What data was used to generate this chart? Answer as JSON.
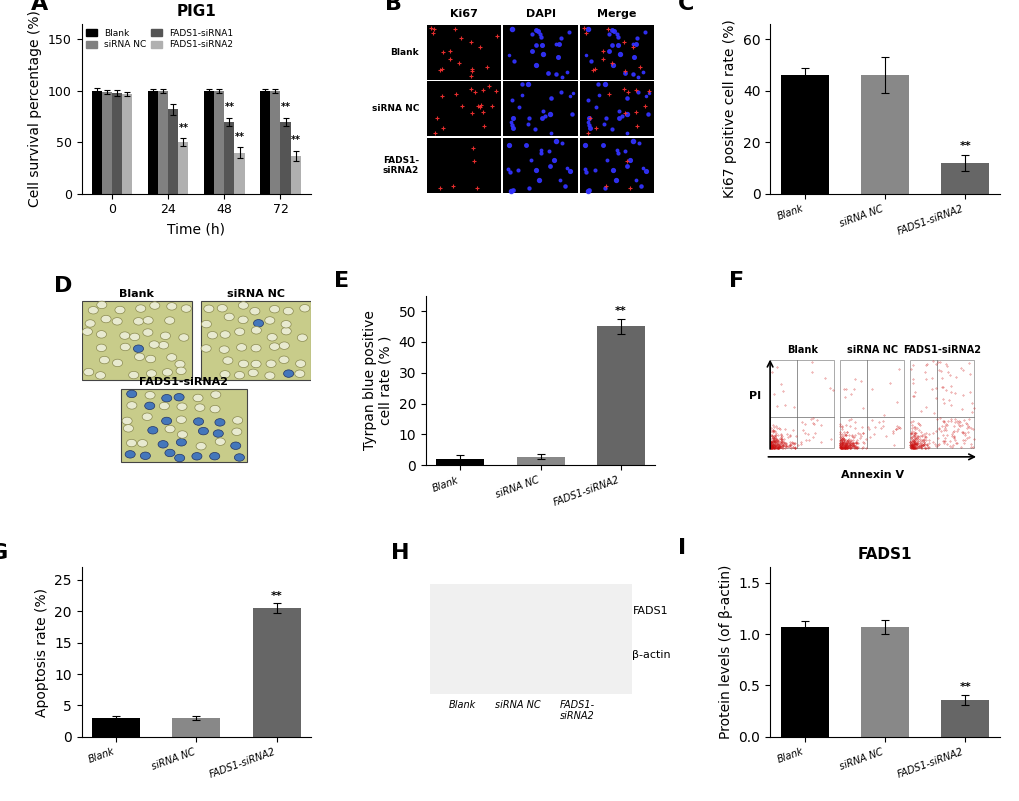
{
  "panel_A": {
    "title": "PIG1",
    "xlabel": "Time (h)",
    "ylabel": "Cell survival percentage (%)",
    "timepoints": [
      0,
      24,
      48,
      72
    ],
    "groups": [
      "Blank",
      "siRNA NC",
      "FADS1-siRNA1",
      "FADS1-siRNA2"
    ],
    "colors": [
      "#000000",
      "#808080",
      "#555555",
      "#b0b0b0"
    ],
    "values": {
      "Blank": [
        100,
        100,
        100,
        100
      ],
      "siRNA NC": [
        99,
        100,
        100,
        100
      ],
      "FADS1-siRNA1": [
        98,
        82,
        70,
        70
      ],
      "FADS1-siRNA2": [
        97,
        50,
        40,
        37
      ]
    },
    "errors": {
      "Blank": [
        3,
        2,
        2,
        2
      ],
      "siRNA NC": [
        2,
        2,
        2,
        2
      ],
      "FADS1-siRNA1": [
        3,
        5,
        4,
        4
      ],
      "FADS1-siRNA2": [
        2,
        4,
        5,
        5
      ]
    },
    "ylim": [
      0,
      165
    ],
    "yticks": [
      0,
      50,
      100,
      150
    ]
  },
  "panel_C": {
    "ylabel": "Ki67 positive cell rate (%)",
    "categories": [
      "Blank",
      "siRNA NC",
      "FADS1-siRNA2"
    ],
    "values": [
      46,
      46,
      12
    ],
    "errors": [
      3,
      7,
      3
    ],
    "colors": [
      "#000000",
      "#888888",
      "#666666"
    ],
    "significance": [
      false,
      false,
      true
    ],
    "ylim": [
      0,
      66
    ],
    "yticks": [
      0,
      20,
      40,
      60
    ]
  },
  "panel_E": {
    "ylabel": "Tyrpan blue positive\ncell rate (% )",
    "categories": [
      "Blank",
      "siRNA NC",
      "FADS1-siRNA2"
    ],
    "values": [
      2.0,
      2.8,
      45
    ],
    "errors": [
      1.2,
      0.8,
      2.5
    ],
    "colors": [
      "#000000",
      "#888888",
      "#666666"
    ],
    "significance": [
      false,
      false,
      true
    ],
    "ylim": [
      0,
      55
    ],
    "yticks": [
      0,
      10,
      20,
      30,
      40,
      50
    ]
  },
  "panel_G": {
    "ylabel": "Apoptosis rate (%)",
    "categories": [
      "Blank",
      "siRNA NC",
      "FADS1-siRNA2"
    ],
    "values": [
      3.0,
      3.0,
      20.5
    ],
    "errors": [
      0.3,
      0.3,
      0.8
    ],
    "colors": [
      "#000000",
      "#888888",
      "#666666"
    ],
    "significance": [
      false,
      false,
      true
    ],
    "ylim": [
      0,
      27
    ],
    "yticks": [
      0,
      5,
      10,
      15,
      20,
      25
    ]
  },
  "panel_I": {
    "title": "FADS1",
    "ylabel": "Protein levels (of β-actin)",
    "categories": [
      "Blank",
      "siRNA NC",
      "FADS1-siRNA2"
    ],
    "values": [
      1.07,
      1.07,
      0.36
    ],
    "errors": [
      0.06,
      0.07,
      0.05
    ],
    "colors": [
      "#000000",
      "#888888",
      "#666666"
    ],
    "significance": [
      false,
      false,
      true
    ],
    "ylim": [
      0,
      1.65
    ],
    "yticks": [
      0.0,
      0.5,
      1.0,
      1.5
    ]
  },
  "label_fontsize": 11,
  "tick_fontsize": 9,
  "panel_label_fontsize": 16,
  "axis_label_fontsize": 10,
  "background_color": "#ffffff"
}
